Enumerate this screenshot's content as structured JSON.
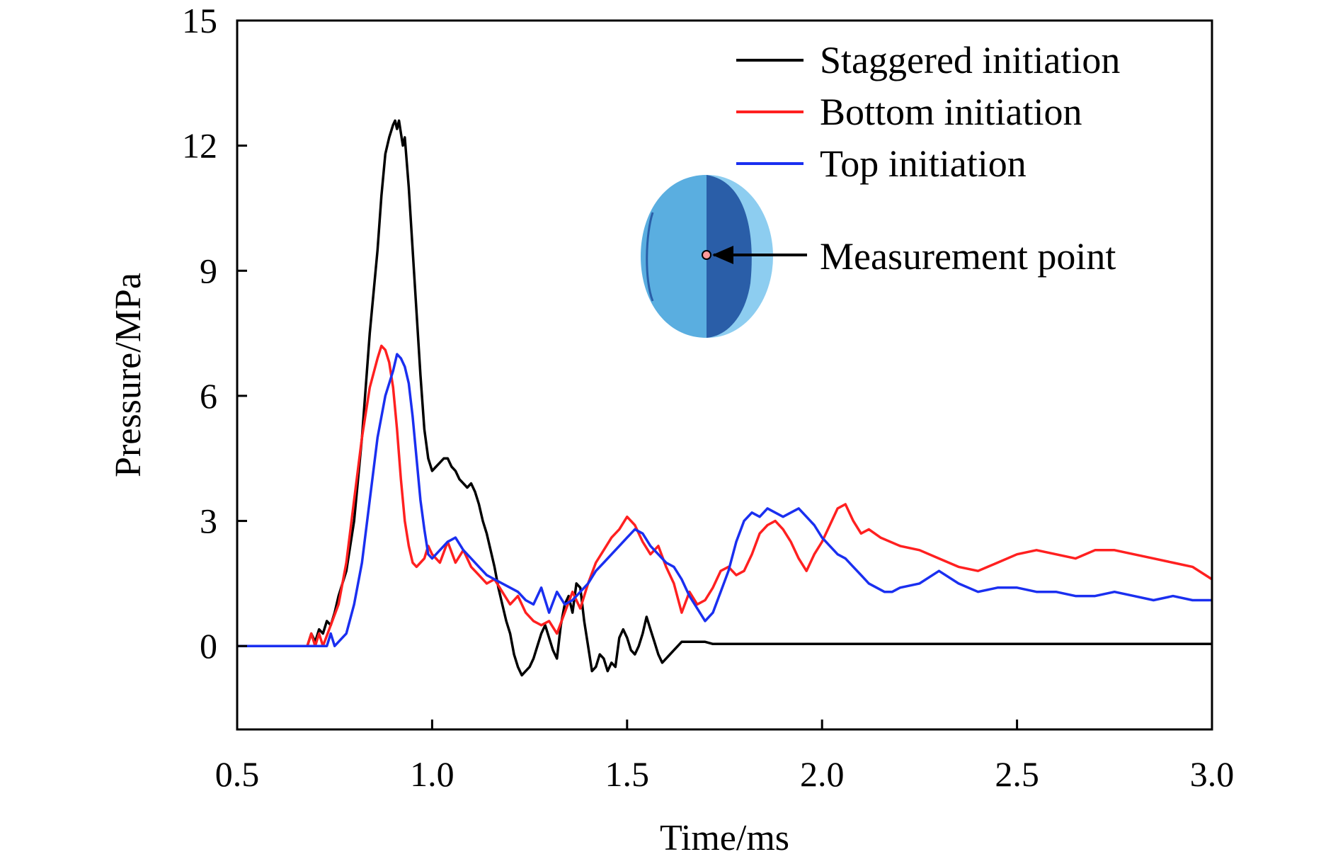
{
  "chart_data": {
    "type": "line",
    "title": "",
    "xlabel": "Time/ms",
    "ylabel": "Pressure/MPa",
    "xlim": [
      0.5,
      3.0
    ],
    "ylim": [
      -2,
      15
    ],
    "x_ticks": [
      "0.5",
      "1.0",
      "1.5",
      "2.0",
      "2.5",
      "3.0"
    ],
    "y_ticks": [
      "0",
      "3",
      "6",
      "9",
      "12",
      "15"
    ],
    "legend_position": "top-right",
    "grid": false,
    "series": [
      {
        "name": "Staggered initiation",
        "color": "#000000",
        "x": [
          0.5,
          0.68,
          0.69,
          0.7,
          0.71,
          0.72,
          0.73,
          0.74,
          0.75,
          0.76,
          0.78,
          0.8,
          0.82,
          0.84,
          0.86,
          0.87,
          0.88,
          0.89,
          0.9,
          0.905,
          0.91,
          0.915,
          0.92,
          0.925,
          0.93,
          0.94,
          0.95,
          0.96,
          0.97,
          0.98,
          0.99,
          1.0,
          1.01,
          1.02,
          1.03,
          1.04,
          1.05,
          1.06,
          1.07,
          1.08,
          1.09,
          1.1,
          1.11,
          1.12,
          1.13,
          1.14,
          1.15,
          1.16,
          1.17,
          1.18,
          1.19,
          1.2,
          1.21,
          1.22,
          1.23,
          1.24,
          1.25,
          1.26,
          1.27,
          1.28,
          1.29,
          1.3,
          1.31,
          1.32,
          1.33,
          1.34,
          1.35,
          1.36,
          1.37,
          1.38,
          1.39,
          1.4,
          1.41,
          1.42,
          1.43,
          1.44,
          1.45,
          1.46,
          1.47,
          1.48,
          1.49,
          1.5,
          1.51,
          1.52,
          1.53,
          1.54,
          1.55,
          1.56,
          1.57,
          1.58,
          1.59,
          1.6,
          1.61,
          1.62,
          1.63,
          1.64,
          1.65,
          1.66,
          1.67,
          1.68,
          1.69,
          1.7,
          1.72,
          1.75,
          2.0,
          2.5,
          3.0
        ],
        "y": [
          0,
          0,
          0.3,
          0.1,
          0.4,
          0.3,
          0.6,
          0.5,
          0.8,
          1.2,
          1.8,
          3.0,
          5.0,
          7.5,
          9.5,
          10.8,
          11.8,
          12.2,
          12.5,
          12.6,
          12.4,
          12.6,
          12.3,
          12.0,
          12.2,
          11.0,
          9.5,
          8.0,
          6.5,
          5.2,
          4.5,
          4.2,
          4.3,
          4.4,
          4.5,
          4.5,
          4.3,
          4.2,
          4.0,
          3.9,
          3.8,
          3.9,
          3.7,
          3.4,
          3.0,
          2.7,
          2.3,
          1.9,
          1.4,
          1.0,
          0.6,
          0.3,
          -0.2,
          -0.5,
          -0.7,
          -0.6,
          -0.5,
          -0.3,
          0.0,
          0.3,
          0.5,
          0.2,
          -0.1,
          -0.3,
          0.5,
          1.0,
          1.2,
          0.8,
          1.5,
          1.4,
          0.6,
          0.0,
          -0.6,
          -0.5,
          -0.2,
          -0.3,
          -0.6,
          -0.4,
          -0.5,
          0.2,
          0.4,
          0.2,
          -0.1,
          -0.2,
          0.0,
          0.3,
          0.7,
          0.4,
          0.1,
          -0.2,
          -0.4,
          -0.3,
          -0.2,
          -0.1,
          0.0,
          0.1,
          0.1,
          0.1,
          0.1,
          0.1,
          0.1,
          0.1,
          0.05,
          0.05,
          0.05,
          0.05,
          0.05
        ]
      },
      {
        "name": "Bottom initiation",
        "color": "#ff2020",
        "x": [
          0.5,
          0.68,
          0.69,
          0.7,
          0.71,
          0.72,
          0.74,
          0.76,
          0.78,
          0.8,
          0.82,
          0.84,
          0.86,
          0.87,
          0.88,
          0.89,
          0.9,
          0.91,
          0.92,
          0.93,
          0.94,
          0.95,
          0.96,
          0.97,
          0.98,
          0.99,
          1.0,
          1.02,
          1.04,
          1.06,
          1.08,
          1.1,
          1.12,
          1.14,
          1.16,
          1.18,
          1.2,
          1.22,
          1.24,
          1.26,
          1.28,
          1.3,
          1.32,
          1.34,
          1.36,
          1.38,
          1.4,
          1.42,
          1.44,
          1.46,
          1.48,
          1.5,
          1.52,
          1.54,
          1.56,
          1.58,
          1.6,
          1.62,
          1.64,
          1.66,
          1.68,
          1.7,
          1.72,
          1.74,
          1.76,
          1.78,
          1.8,
          1.82,
          1.84,
          1.86,
          1.88,
          1.9,
          1.92,
          1.94,
          1.96,
          1.98,
          2.0,
          2.02,
          2.04,
          2.06,
          2.08,
          2.1,
          2.12,
          2.15,
          2.2,
          2.25,
          2.3,
          2.35,
          2.4,
          2.45,
          2.5,
          2.55,
          2.6,
          2.65,
          2.7,
          2.75,
          2.8,
          2.85,
          2.9,
          2.95,
          3.0
        ],
        "y": [
          0,
          0,
          0.3,
          0.0,
          0.3,
          0.0,
          0.5,
          1.0,
          2.0,
          3.5,
          5.0,
          6.2,
          6.9,
          7.2,
          7.1,
          6.8,
          6.2,
          5.2,
          4.0,
          3.0,
          2.4,
          2.0,
          1.9,
          2.0,
          2.1,
          2.4,
          2.2,
          2.0,
          2.5,
          2.0,
          2.3,
          1.9,
          1.7,
          1.5,
          1.6,
          1.3,
          1.0,
          1.2,
          0.8,
          0.6,
          0.5,
          0.6,
          0.3,
          0.8,
          1.3,
          0.9,
          1.5,
          2.0,
          2.3,
          2.6,
          2.8,
          3.1,
          2.9,
          2.5,
          2.2,
          2.4,
          1.9,
          1.5,
          0.8,
          1.3,
          1.0,
          1.1,
          1.4,
          1.8,
          1.9,
          1.7,
          1.8,
          2.2,
          2.7,
          2.9,
          3.0,
          2.8,
          2.5,
          2.1,
          1.8,
          2.2,
          2.5,
          2.9,
          3.3,
          3.4,
          3.0,
          2.7,
          2.8,
          2.6,
          2.4,
          2.3,
          2.1,
          1.9,
          1.8,
          2.0,
          2.2,
          2.3,
          2.2,
          2.1,
          2.3,
          2.3,
          2.2,
          2.1,
          2.0,
          1.9,
          1.6
        ]
      },
      {
        "name": "Top initiation",
        "color": "#1a2ff0",
        "x": [
          0.5,
          0.73,
          0.74,
          0.75,
          0.76,
          0.78,
          0.8,
          0.82,
          0.84,
          0.86,
          0.88,
          0.9,
          0.91,
          0.92,
          0.93,
          0.94,
          0.95,
          0.96,
          0.97,
          0.98,
          0.99,
          1.0,
          1.01,
          1.02,
          1.04,
          1.06,
          1.08,
          1.1,
          1.12,
          1.14,
          1.16,
          1.18,
          1.2,
          1.22,
          1.24,
          1.26,
          1.28,
          1.3,
          1.32,
          1.34,
          1.36,
          1.38,
          1.4,
          1.42,
          1.44,
          1.46,
          1.48,
          1.5,
          1.52,
          1.54,
          1.56,
          1.58,
          1.6,
          1.62,
          1.64,
          1.66,
          1.68,
          1.7,
          1.72,
          1.74,
          1.76,
          1.78,
          1.8,
          1.82,
          1.84,
          1.86,
          1.88,
          1.9,
          1.92,
          1.94,
          1.96,
          1.98,
          2.0,
          2.02,
          2.04,
          2.06,
          2.08,
          2.1,
          2.12,
          2.14,
          2.16,
          2.18,
          2.2,
          2.25,
          2.3,
          2.35,
          2.4,
          2.45,
          2.5,
          2.55,
          2.6,
          2.65,
          2.7,
          2.75,
          2.8,
          2.85,
          2.9,
          2.95,
          3.0
        ],
        "y": [
          0,
          0,
          0.3,
          0.0,
          0.1,
          0.3,
          1.0,
          2.0,
          3.5,
          5.0,
          6.0,
          6.6,
          7.0,
          6.9,
          6.7,
          6.3,
          5.5,
          4.5,
          3.5,
          2.8,
          2.2,
          2.1,
          2.2,
          2.3,
          2.5,
          2.6,
          2.3,
          2.1,
          1.9,
          1.7,
          1.6,
          1.5,
          1.4,
          1.3,
          1.1,
          1.0,
          1.4,
          0.8,
          1.3,
          1.0,
          1.1,
          1.3,
          1.5,
          1.8,
          2.0,
          2.2,
          2.4,
          2.6,
          2.8,
          2.7,
          2.4,
          2.2,
          2.0,
          1.9,
          1.6,
          1.2,
          0.9,
          0.6,
          0.8,
          1.3,
          1.8,
          2.5,
          3.0,
          3.2,
          3.1,
          3.3,
          3.2,
          3.1,
          3.2,
          3.3,
          3.1,
          2.9,
          2.6,
          2.4,
          2.2,
          2.1,
          1.9,
          1.7,
          1.5,
          1.4,
          1.3,
          1.3,
          1.4,
          1.5,
          1.8,
          1.5,
          1.3,
          1.4,
          1.4,
          1.3,
          1.3,
          1.2,
          1.2,
          1.3,
          1.2,
          1.1,
          1.2,
          1.1,
          1.1
        ]
      }
    ],
    "annotation": {
      "label": "Measurement point",
      "sphere_colors": [
        "#5aaee0",
        "#2a5ea8",
        "#8dcdf0"
      ],
      "marker_color": "#ff9a9a"
    }
  }
}
